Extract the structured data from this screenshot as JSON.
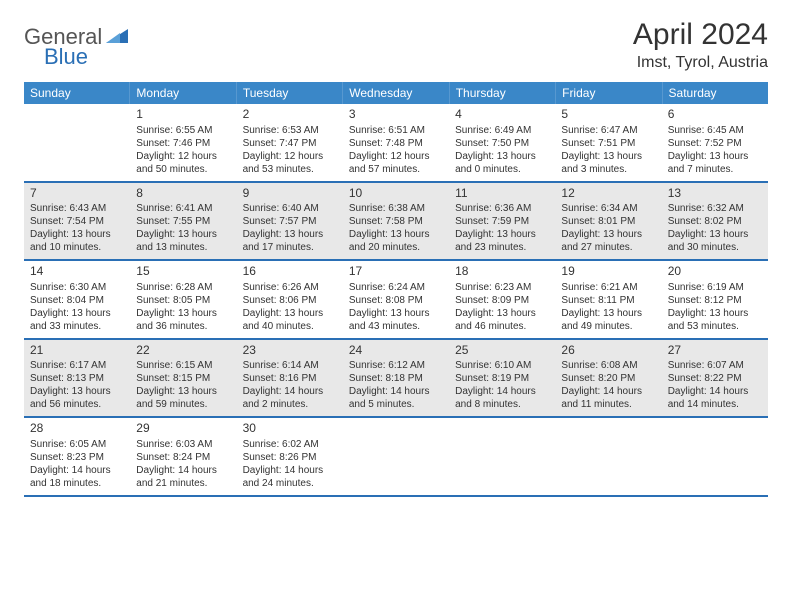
{
  "colors": {
    "header_bg": "#3a87c8",
    "row_divider": "#2a6fb5",
    "shaded_cell": "#e8e8e8",
    "text": "#333333",
    "logo_blue": "#2a6fb5",
    "logo_grey": "#555555",
    "background": "#ffffff"
  },
  "logo": {
    "part1": "General",
    "part2": "Blue"
  },
  "title": "April 2024",
  "location": "Imst, Tyrol, Austria",
  "day_names": [
    "Sunday",
    "Monday",
    "Tuesday",
    "Wednesday",
    "Thursday",
    "Friday",
    "Saturday"
  ],
  "weeks": [
    [
      {
        "day": "",
        "shaded": false,
        "sunrise": "",
        "sunset": "",
        "daylight": ""
      },
      {
        "day": "1",
        "shaded": false,
        "sunrise": "Sunrise: 6:55 AM",
        "sunset": "Sunset: 7:46 PM",
        "daylight": "Daylight: 12 hours and 50 minutes."
      },
      {
        "day": "2",
        "shaded": false,
        "sunrise": "Sunrise: 6:53 AM",
        "sunset": "Sunset: 7:47 PM",
        "daylight": "Daylight: 12 hours and 53 minutes."
      },
      {
        "day": "3",
        "shaded": false,
        "sunrise": "Sunrise: 6:51 AM",
        "sunset": "Sunset: 7:48 PM",
        "daylight": "Daylight: 12 hours and 57 minutes."
      },
      {
        "day": "4",
        "shaded": false,
        "sunrise": "Sunrise: 6:49 AM",
        "sunset": "Sunset: 7:50 PM",
        "daylight": "Daylight: 13 hours and 0 minutes."
      },
      {
        "day": "5",
        "shaded": false,
        "sunrise": "Sunrise: 6:47 AM",
        "sunset": "Sunset: 7:51 PM",
        "daylight": "Daylight: 13 hours and 3 minutes."
      },
      {
        "day": "6",
        "shaded": false,
        "sunrise": "Sunrise: 6:45 AM",
        "sunset": "Sunset: 7:52 PM",
        "daylight": "Daylight: 13 hours and 7 minutes."
      }
    ],
    [
      {
        "day": "7",
        "shaded": true,
        "sunrise": "Sunrise: 6:43 AM",
        "sunset": "Sunset: 7:54 PM",
        "daylight": "Daylight: 13 hours and 10 minutes."
      },
      {
        "day": "8",
        "shaded": true,
        "sunrise": "Sunrise: 6:41 AM",
        "sunset": "Sunset: 7:55 PM",
        "daylight": "Daylight: 13 hours and 13 minutes."
      },
      {
        "day": "9",
        "shaded": true,
        "sunrise": "Sunrise: 6:40 AM",
        "sunset": "Sunset: 7:57 PM",
        "daylight": "Daylight: 13 hours and 17 minutes."
      },
      {
        "day": "10",
        "shaded": true,
        "sunrise": "Sunrise: 6:38 AM",
        "sunset": "Sunset: 7:58 PM",
        "daylight": "Daylight: 13 hours and 20 minutes."
      },
      {
        "day": "11",
        "shaded": true,
        "sunrise": "Sunrise: 6:36 AM",
        "sunset": "Sunset: 7:59 PM",
        "daylight": "Daylight: 13 hours and 23 minutes."
      },
      {
        "day": "12",
        "shaded": true,
        "sunrise": "Sunrise: 6:34 AM",
        "sunset": "Sunset: 8:01 PM",
        "daylight": "Daylight: 13 hours and 27 minutes."
      },
      {
        "day": "13",
        "shaded": true,
        "sunrise": "Sunrise: 6:32 AM",
        "sunset": "Sunset: 8:02 PM",
        "daylight": "Daylight: 13 hours and 30 minutes."
      }
    ],
    [
      {
        "day": "14",
        "shaded": false,
        "sunrise": "Sunrise: 6:30 AM",
        "sunset": "Sunset: 8:04 PM",
        "daylight": "Daylight: 13 hours and 33 minutes."
      },
      {
        "day": "15",
        "shaded": false,
        "sunrise": "Sunrise: 6:28 AM",
        "sunset": "Sunset: 8:05 PM",
        "daylight": "Daylight: 13 hours and 36 minutes."
      },
      {
        "day": "16",
        "shaded": false,
        "sunrise": "Sunrise: 6:26 AM",
        "sunset": "Sunset: 8:06 PM",
        "daylight": "Daylight: 13 hours and 40 minutes."
      },
      {
        "day": "17",
        "shaded": false,
        "sunrise": "Sunrise: 6:24 AM",
        "sunset": "Sunset: 8:08 PM",
        "daylight": "Daylight: 13 hours and 43 minutes."
      },
      {
        "day": "18",
        "shaded": false,
        "sunrise": "Sunrise: 6:23 AM",
        "sunset": "Sunset: 8:09 PM",
        "daylight": "Daylight: 13 hours and 46 minutes."
      },
      {
        "day": "19",
        "shaded": false,
        "sunrise": "Sunrise: 6:21 AM",
        "sunset": "Sunset: 8:11 PM",
        "daylight": "Daylight: 13 hours and 49 minutes."
      },
      {
        "day": "20",
        "shaded": false,
        "sunrise": "Sunrise: 6:19 AM",
        "sunset": "Sunset: 8:12 PM",
        "daylight": "Daylight: 13 hours and 53 minutes."
      }
    ],
    [
      {
        "day": "21",
        "shaded": true,
        "sunrise": "Sunrise: 6:17 AM",
        "sunset": "Sunset: 8:13 PM",
        "daylight": "Daylight: 13 hours and 56 minutes."
      },
      {
        "day": "22",
        "shaded": true,
        "sunrise": "Sunrise: 6:15 AM",
        "sunset": "Sunset: 8:15 PM",
        "daylight": "Daylight: 13 hours and 59 minutes."
      },
      {
        "day": "23",
        "shaded": true,
        "sunrise": "Sunrise: 6:14 AM",
        "sunset": "Sunset: 8:16 PM",
        "daylight": "Daylight: 14 hours and 2 minutes."
      },
      {
        "day": "24",
        "shaded": true,
        "sunrise": "Sunrise: 6:12 AM",
        "sunset": "Sunset: 8:18 PM",
        "daylight": "Daylight: 14 hours and 5 minutes."
      },
      {
        "day": "25",
        "shaded": true,
        "sunrise": "Sunrise: 6:10 AM",
        "sunset": "Sunset: 8:19 PM",
        "daylight": "Daylight: 14 hours and 8 minutes."
      },
      {
        "day": "26",
        "shaded": true,
        "sunrise": "Sunrise: 6:08 AM",
        "sunset": "Sunset: 8:20 PM",
        "daylight": "Daylight: 14 hours and 11 minutes."
      },
      {
        "day": "27",
        "shaded": true,
        "sunrise": "Sunrise: 6:07 AM",
        "sunset": "Sunset: 8:22 PM",
        "daylight": "Daylight: 14 hours and 14 minutes."
      }
    ],
    [
      {
        "day": "28",
        "shaded": false,
        "sunrise": "Sunrise: 6:05 AM",
        "sunset": "Sunset: 8:23 PM",
        "daylight": "Daylight: 14 hours and 18 minutes."
      },
      {
        "day": "29",
        "shaded": false,
        "sunrise": "Sunrise: 6:03 AM",
        "sunset": "Sunset: 8:24 PM",
        "daylight": "Daylight: 14 hours and 21 minutes."
      },
      {
        "day": "30",
        "shaded": false,
        "sunrise": "Sunrise: 6:02 AM",
        "sunset": "Sunset: 8:26 PM",
        "daylight": "Daylight: 14 hours and 24 minutes."
      },
      {
        "day": "",
        "shaded": false,
        "sunrise": "",
        "sunset": "",
        "daylight": ""
      },
      {
        "day": "",
        "shaded": false,
        "sunrise": "",
        "sunset": "",
        "daylight": ""
      },
      {
        "day": "",
        "shaded": false,
        "sunrise": "",
        "sunset": "",
        "daylight": ""
      },
      {
        "day": "",
        "shaded": false,
        "sunrise": "",
        "sunset": "",
        "daylight": ""
      }
    ]
  ]
}
